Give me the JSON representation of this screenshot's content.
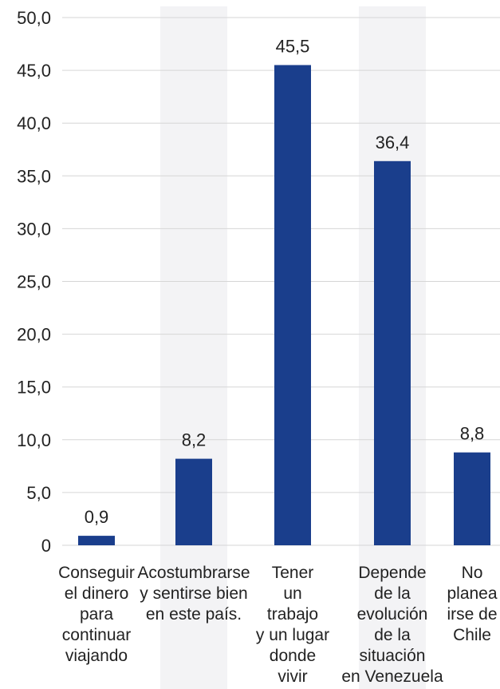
{
  "chart_data": {
    "type": "bar",
    "categories": [
      [
        "Conseguir",
        "el dinero",
        "para",
        "continuar",
        "viajando"
      ],
      [
        "Acostumbrarse",
        "y sentirse bien",
        "en este país."
      ],
      [
        "Tener",
        "un",
        "trabajo",
        "y un lugar",
        "donde",
        "vivir"
      ],
      [
        "Depende",
        "de la",
        "evolución",
        "de la",
        "situación",
        "en Venezuela"
      ],
      [
        "No",
        "planea",
        "irse de",
        "Chile"
      ]
    ],
    "values": [
      0.9,
      8.2,
      45.5,
      36.4,
      8.8
    ],
    "value_labels": [
      "0,9",
      "8,2",
      "45,5",
      "36,4",
      "8,8"
    ],
    "ylim": [
      0,
      50
    ],
    "yticks": [
      0,
      5,
      10,
      15,
      20,
      25,
      30,
      35,
      40,
      45,
      50
    ],
    "ytick_labels": [
      "0",
      "5,0",
      "10,0",
      "15,0",
      "20,0",
      "25,0",
      "30,0",
      "35,0",
      "40,0",
      "45,0",
      "50,0"
    ],
    "grid": true,
    "bar_color": "#1a3e8c",
    "band_color": "#f3f3f5",
    "grid_color": "#d6d6d6"
  }
}
